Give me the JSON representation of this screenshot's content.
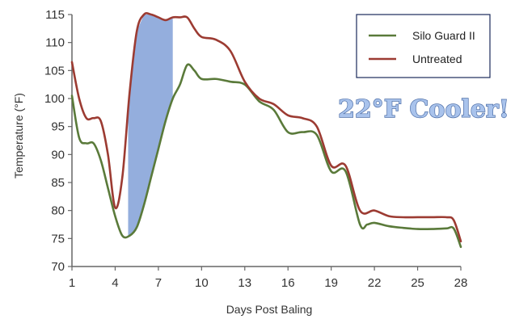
{
  "chart_data": {
    "type": "line",
    "title": "",
    "xlabel": "Days Post Baling",
    "ylabel": "Temperature (°F)",
    "xlim": [
      1,
      28
    ],
    "ylim": [
      70,
      115
    ],
    "x_ticks": [
      1,
      4,
      7,
      10,
      13,
      16,
      19,
      22,
      25,
      28
    ],
    "y_ticks": [
      70,
      75,
      80,
      85,
      90,
      95,
      100,
      105,
      110,
      115
    ],
    "grid": false,
    "legend_position": "top-right",
    "annotation": "22°F Cooler!",
    "shaded_region": {
      "x_start": 4.9,
      "x_end": 8.0,
      "between": [
        "Untreated",
        "Silo Guard II"
      ],
      "color": "#8eaadb"
    },
    "series": [
      {
        "name": "Silo Guard II",
        "color": "#5a7a3a",
        "x": [
          1,
          1.5,
          2,
          2.5,
          3,
          3.5,
          4,
          4.5,
          5,
          5.5,
          6,
          6.5,
          7,
          7.5,
          8,
          8.5,
          9,
          9.5,
          10,
          11,
          12,
          13,
          14,
          15,
          16,
          17,
          18,
          19,
          20,
          21,
          21.5,
          22,
          23,
          24,
          25,
          26,
          27,
          27.5,
          28
        ],
        "values": [
          100.5,
          93,
          92,
          92,
          89,
          84,
          79,
          75.5,
          75.5,
          77,
          81,
          86,
          91,
          96,
          100,
          102.5,
          106,
          105,
          103.5,
          103.5,
          103,
          102.5,
          99.5,
          98,
          94,
          94,
          93.5,
          87,
          87,
          77.5,
          77.5,
          77.8,
          77.2,
          76.9,
          76.7,
          76.7,
          76.8,
          76.8,
          73.5
        ]
      },
      {
        "name": "Untreated",
        "color": "#9c3b32",
        "x": [
          1,
          1.5,
          2,
          2.5,
          3,
          3.5,
          4,
          4.5,
          5,
          5.5,
          6,
          6.5,
          7,
          7.5,
          8,
          8.5,
          9,
          9.5,
          10,
          11,
          12,
          13,
          14,
          15,
          16,
          17,
          18,
          19,
          20,
          21,
          22,
          23,
          24,
          25,
          26,
          27,
          27.5,
          28
        ],
        "values": [
          106.5,
          100,
          96.5,
          96.5,
          96,
          90,
          80.5,
          86,
          101,
          112,
          115,
          115,
          114.5,
          114,
          114.5,
          114.5,
          114.5,
          112.5,
          111,
          110.5,
          108.5,
          103,
          100,
          99,
          97,
          96.5,
          95,
          88,
          88,
          80,
          80,
          79,
          78.8,
          78.8,
          78.8,
          78.8,
          78.3,
          74.5
        ]
      }
    ]
  }
}
